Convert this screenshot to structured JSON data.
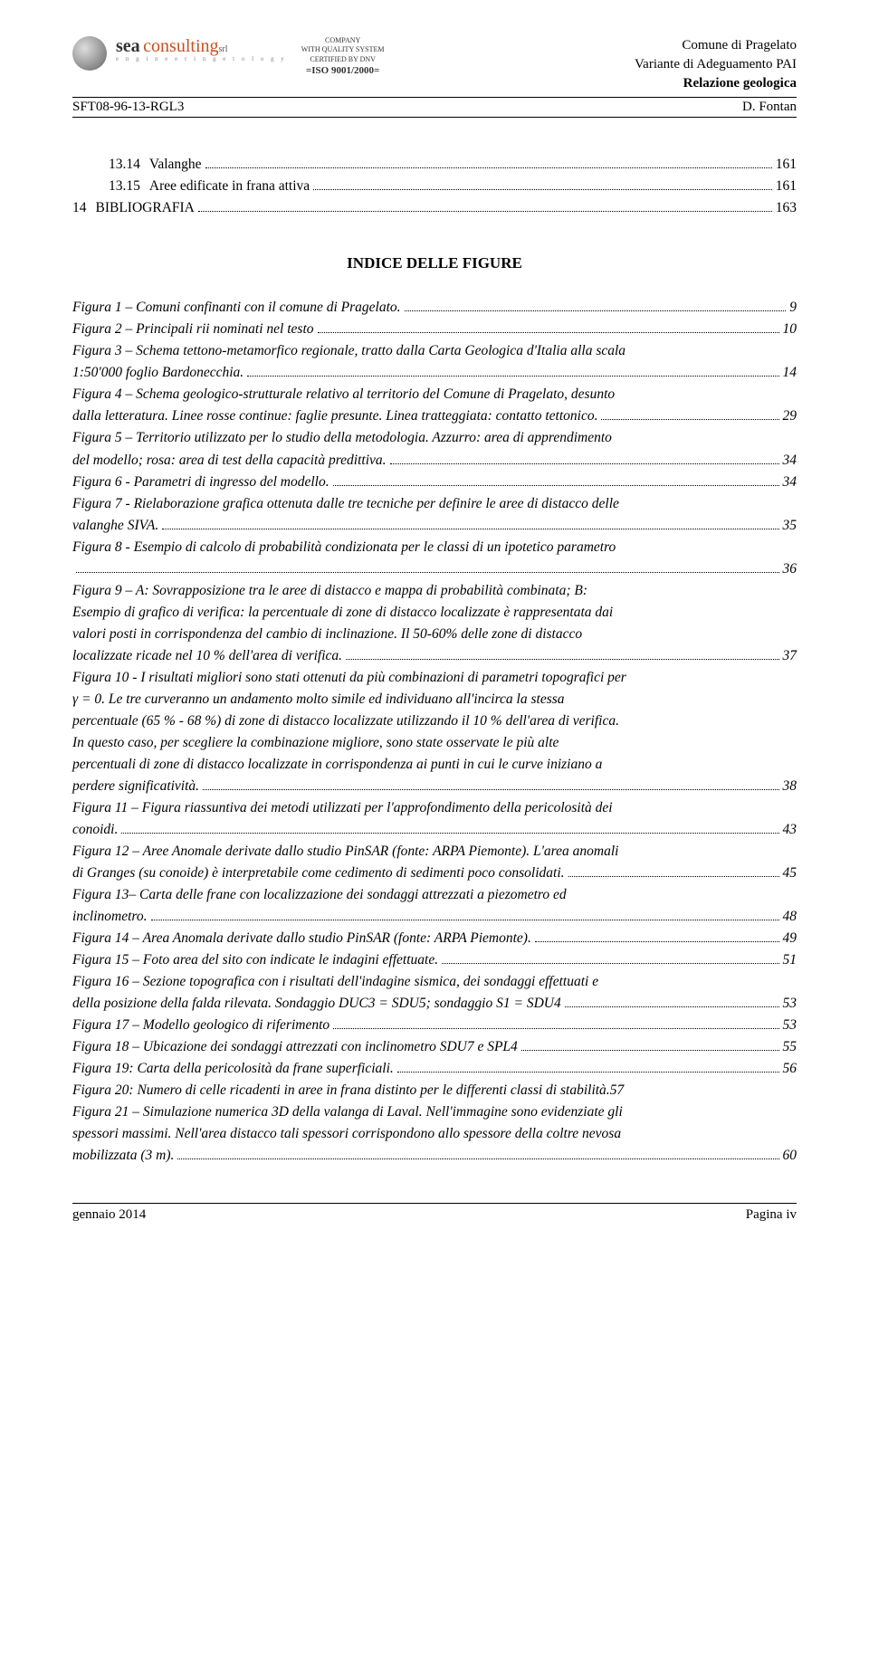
{
  "header": {
    "logo_sea": "sea",
    "logo_consulting": "consulting",
    "logo_srl": "srl",
    "logo_sub": "e n g i n e e r i n g   e t o l o g y",
    "cert_l1": "COMPANY",
    "cert_l2": "WITH QUALITY SYSTEM",
    "cert_l3": "CERTIFIED BY DNV",
    "cert_iso": "=ISO 9001/2000=",
    "right_l1": "Comune di Pragelato",
    "right_l2": "Variante di Adeguamento PAI",
    "right_l3": "Relazione geologica",
    "code": "SFT08-96-13-RGL3",
    "author": "D. Fontan"
  },
  "toc_cont": [
    {
      "indent": true,
      "num": "13.14",
      "text": "Valanghe",
      "pg": "161"
    },
    {
      "indent": true,
      "num": "13.15",
      "text": "Aree edificate in frana attiva",
      "pg": "161"
    },
    {
      "indent": false,
      "num": "14",
      "text": "BIBLIOGRAFIA",
      "pg": "163",
      "sc": true
    }
  ],
  "figtitle": "INDICE DELLE FIGURE",
  "figs": [
    {
      "lines": [
        "Figura 1 – Comuni confinanti con il comune di Pragelato."
      ],
      "pg": "9"
    },
    {
      "lines": [
        "Figura 2 – Principali rii nominati nel testo"
      ],
      "pg": "10"
    },
    {
      "lines": [
        "Figura 3 – Schema tettono-metamorfico regionale, tratto dalla Carta Geologica d'Italia alla scala",
        "1:50'000 foglio Bardonecchia."
      ],
      "pg": "14"
    },
    {
      "lines": [
        "Figura 4 – Schema geologico-strutturale relativo al territorio del Comune di Pragelato, desunto",
        "dalla letteratura. Linee rosse continue: faglie presunte. Linea tratteggiata: contatto tettonico."
      ],
      "pg": "29"
    },
    {
      "lines": [
        "Figura 5 – Territorio utilizzato per lo studio della metodologia. Azzurro: area di apprendimento",
        "del modello; rosa: area di test della capacità predittiva."
      ],
      "pg": "34"
    },
    {
      "lines": [
        "Figura 6  - Parametri di ingresso del modello."
      ],
      "pg": "34"
    },
    {
      "lines": [
        "Figura 7 - Rielaborazione grafica ottenuta dalle tre tecniche per definire le aree di distacco delle",
        "valanghe SIVA."
      ],
      "pg": "35"
    },
    {
      "lines": [
        "Figura 8 -  Esempio di calcolo di probabilità condizionata per le classi di un ipotetico parametro",
        ""
      ],
      "pg": "36"
    },
    {
      "lines": [
        "Figura 9 – A: Sovrapposizione tra le aree di distacco e mappa di probabilità combinata; B:",
        "Esempio di grafico di verifica: la percentuale di zone di distacco localizzate è rappresentata dai",
        "valori posti in corrispondenza del cambio di inclinazione. Il 50-60% delle zone di distacco",
        "localizzate ricade nel 10 % dell'area di verifica."
      ],
      "pg": "37"
    },
    {
      "lines": [
        "Figura 10 - I risultati migliori sono stati ottenuti da più combinazioni di parametri topografici per",
        "γ = 0. Le tre curveranno un andamento molto simile ed individuano all'incirca la stessa",
        "percentuale (65 % - 68 %) di zone di distacco localizzate utilizzando il 10 % dell'area di verifica.",
        "In questo caso, per scegliere la combinazione migliore, sono state osservate  le più alte",
        "percentuali di zone di distacco localizzate in corrispondenza ai punti in cui le curve iniziano a",
        "perdere significatività."
      ],
      "pg": "38"
    },
    {
      "lines": [
        "Figura 11 – Figura riassuntiva dei metodi utilizzati per l'approfondimento della pericolosità dei",
        "conoidi."
      ],
      "pg": "43"
    },
    {
      "lines": [
        "Figura 12 – Aree Anomale derivate dallo studio PinSAR (fonte: ARPA Piemonte). L'area anomali",
        "di Granges (su conoide) è interpretabile come cedimento di sedimenti poco consolidati. "
      ],
      "pg": "45"
    },
    {
      "lines": [
        "Figura 13– Carta delle frane con localizzazione dei sondaggi attrezzati a piezometro ed",
        "inclinometro. "
      ],
      "pg": "48"
    },
    {
      "lines": [
        "Figura 14 – Area Anomala derivate dallo studio PinSAR (fonte: ARPA Piemonte)."
      ],
      "pg": "49"
    },
    {
      "lines": [
        "Figura 15 – Foto area del sito con indicate le indagini effettuate."
      ],
      "pg": "51"
    },
    {
      "lines": [
        "Figura 16 – Sezione topografica con i risultati dell'indagine sismica, dei sondaggi effettuati e",
        "della posizione della falda rilevata. Sondaggio DUC3 = SDU5; sondaggio S1 = SDU4"
      ],
      "pg": "53"
    },
    {
      "lines": [
        "Figura 17 – Modello geologico di riferimento"
      ],
      "pg": "53"
    },
    {
      "lines": [
        "Figura 18 – Ubicazione dei sondaggi attrezzati con inclinometro SDU7 e SPL4"
      ],
      "pg": "55"
    },
    {
      "lines": [
        "Figura 19: Carta della pericolosità da frane superficiali."
      ],
      "pg": "56"
    },
    {
      "lines": [
        "Figura 20: Numero di celle ricadenti in aree in frana distinto per le differenti classi di stabilità."
      ],
      "pg": "57",
      "nodots": true
    },
    {
      "lines": [
        "Figura 21 – Simulazione numerica 3D della valanga di Laval. Nell'immagine sono evidenziate gli",
        "spessori massimi. Nell'area distacco tali spessori  corrispondono allo spessore della coltre nevosa",
        "mobilizzata (3 m)."
      ],
      "pg": "60"
    }
  ],
  "footer": {
    "left": "gennaio 2014",
    "right": "Pagina iv"
  }
}
